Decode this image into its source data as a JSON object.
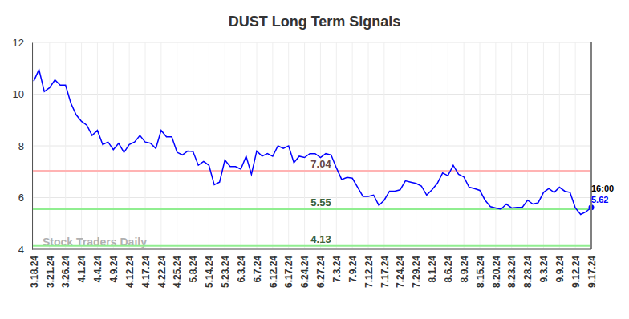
{
  "chart_data": {
    "type": "line",
    "title": "DUST Long Term Signals",
    "categories": [
      "3.18.24",
      null,
      null,
      "3.21.24",
      null,
      null,
      "3.26.24",
      null,
      null,
      "4.1.24",
      null,
      null,
      "4.4.24",
      null,
      null,
      "4.9.24",
      null,
      null,
      "4.12.24",
      null,
      null,
      "4.17.24",
      null,
      null,
      "4.22.24",
      null,
      null,
      "4.25.24",
      null,
      null,
      "5.8.24",
      null,
      null,
      "5.14.24",
      null,
      null,
      "5.23.24",
      null,
      null,
      "6.3.24",
      null,
      null,
      "6.7.24",
      null,
      null,
      "6.12.24",
      null,
      null,
      "6.17.24",
      null,
      null,
      "6.24.24",
      null,
      null,
      "6.27.24",
      null,
      null,
      "7.3.24",
      null,
      null,
      "7.9.24",
      null,
      null,
      "7.12.24",
      null,
      null,
      "7.17.24",
      null,
      null,
      "7.24.24",
      null,
      null,
      "7.29.24",
      null,
      null,
      "8.1.24",
      null,
      null,
      "8.6.24",
      null,
      null,
      "8.9.24",
      null,
      null,
      "8.15.24",
      null,
      null,
      "8.20.24",
      null,
      null,
      "8.23.24",
      null,
      null,
      "8.28.24",
      null,
      null,
      "9.3.24",
      null,
      null,
      "9.9.24",
      null,
      null,
      "9.12.24",
      null,
      null,
      "9.17.24"
    ],
    "values": [
      10.5,
      10.95,
      10.1,
      10.25,
      10.55,
      10.35,
      10.35,
      9.65,
      9.2,
      8.95,
      8.8,
      8.4,
      8.6,
      8.05,
      8.15,
      7.85,
      8.1,
      7.75,
      8.05,
      8.15,
      8.4,
      8.15,
      8.1,
      7.9,
      8.6,
      8.35,
      8.35,
      7.75,
      7.65,
      7.8,
      7.78,
      7.25,
      7.4,
      7.25,
      6.5,
      6.6,
      7.45,
      7.2,
      7.2,
      7.1,
      7.6,
      6.9,
      7.8,
      7.6,
      7.7,
      7.6,
      8.0,
      7.9,
      8.0,
      7.35,
      7.6,
      7.55,
      7.7,
      7.7,
      7.55,
      7.7,
      7.65,
      7.15,
      6.7,
      6.78,
      6.75,
      6.4,
      6.05,
      6.05,
      6.1,
      5.7,
      5.9,
      6.25,
      6.25,
      6.3,
      6.65,
      6.6,
      6.55,
      6.45,
      6.1,
      6.3,
      6.55,
      6.95,
      6.85,
      7.25,
      6.9,
      6.8,
      6.4,
      6.35,
      6.28,
      5.9,
      5.65,
      5.6,
      5.55,
      5.75,
      5.6,
      5.62,
      5.62,
      5.9,
      5.75,
      5.8,
      6.2,
      6.35,
      6.2,
      6.4,
      6.25,
      6.2,
      5.6,
      5.35,
      5.45,
      5.62
    ],
    "color": "#0000ff",
    "ylim": [
      4,
      12
    ],
    "yticks": [
      4,
      6,
      8,
      10,
      12
    ],
    "grid": true,
    "hlines": [
      {
        "value": 7.04,
        "color": "#ffb3b3"
      },
      {
        "value": 5.55,
        "color": "#90ee90"
      },
      {
        "value": 4.13,
        "color": "#90ee90"
      }
    ],
    "annotations": [
      {
        "text": "16:00"
      }
    ],
    "watermark": "Stock Traders Daily"
  }
}
